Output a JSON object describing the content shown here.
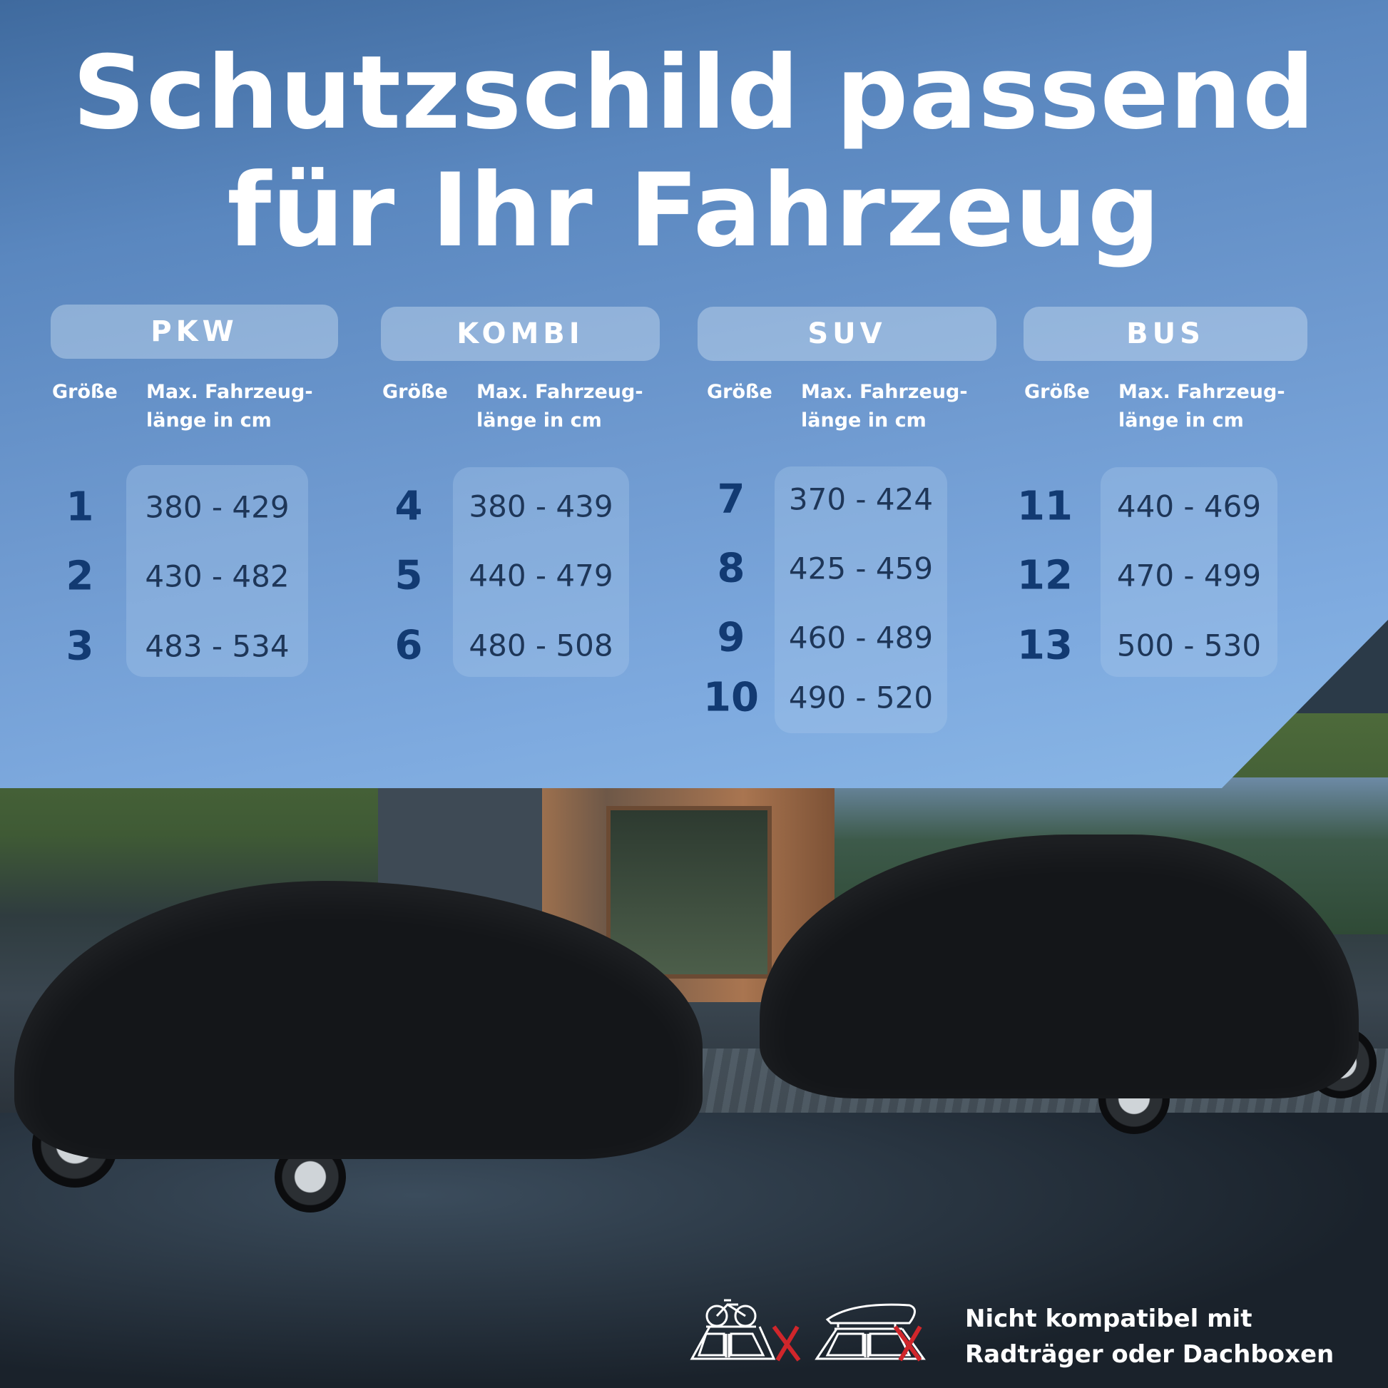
{
  "title": {
    "line1": "Schutzschild passend",
    "line2": "für Ihr Fahrzeug"
  },
  "column_headers": {
    "size": "Größe",
    "length_line1": "Max. Fahrzeug-",
    "length_line2": "länge in cm"
  },
  "categories": [
    {
      "name": "PKW",
      "rows": [
        {
          "size": "1",
          "range": "380 - 429"
        },
        {
          "size": "2",
          "range": "430 - 482"
        },
        {
          "size": "3",
          "range": "483 - 534"
        }
      ]
    },
    {
      "name": "KOMBI",
      "rows": [
        {
          "size": "4",
          "range": "380 - 439"
        },
        {
          "size": "5",
          "range": "440 - 479"
        },
        {
          "size": "6",
          "range": "480 - 508"
        }
      ]
    },
    {
      "name": "SUV",
      "rows": [
        {
          "size": "7",
          "range": "370 - 424"
        },
        {
          "size": "8",
          "range": "425 - 459"
        },
        {
          "size": "9",
          "range": "460 - 489"
        },
        {
          "size": "10",
          "range": "490 - 520"
        }
      ]
    },
    {
      "name": "BUS",
      "rows": [
        {
          "size": "11",
          "range": "440 - 469"
        },
        {
          "size": "12",
          "range": "470 - 499"
        },
        {
          "size": "13",
          "range": "500 - 530"
        }
      ]
    }
  ],
  "footer": {
    "line1": "Nicht kompatibel mit",
    "line2": "Radträger oder Dachboxen",
    "icons": [
      "bike-rack-crossed-icon",
      "roof-box-crossed-icon"
    ]
  },
  "colors": {
    "number": "#123a72",
    "range": "#1e3658",
    "cross": "#d0262b"
  }
}
